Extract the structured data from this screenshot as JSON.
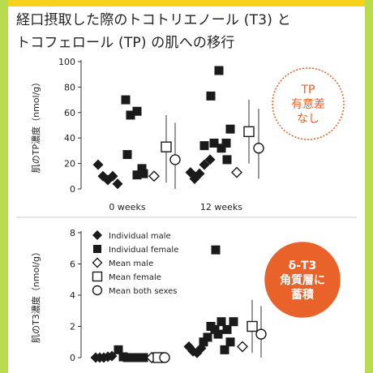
{
  "page": {
    "title_line1": "経口摂取した際のトコトリエノール (T3) と",
    "title_line2": "トコフェロール (TP) の肌への移行",
    "accent_color": "#e8622a",
    "background_color": "#b9db4e",
    "top_bar_color": "#f6d21a"
  },
  "chart_data": [
    {
      "type": "scatter",
      "title": "",
      "xlabel": "",
      "ylabel": "肌のTP濃度（nmol/g）",
      "categories": [
        "0 weeks",
        "12 weeks"
      ],
      "ylim": [
        0,
        100
      ],
      "yticks": [
        0,
        20,
        40,
        60,
        80,
        100
      ],
      "annotation": "TP\n有意差\nなし",
      "series": [
        {
          "name": "Individual male",
          "marker": "filled-diamond",
          "points": [
            {
              "x": "0 weeks",
              "offset": -0.36,
              "y": 19
            },
            {
              "x": "0 weeks",
              "offset": -0.3,
              "y": 10
            },
            {
              "x": "0 weeks",
              "offset": -0.24,
              "y": 7
            },
            {
              "x": "0 weeks",
              "offset": -0.18,
              "y": 10
            },
            {
              "x": "0 weeks",
              "offset": -0.12,
              "y": 4
            },
            {
              "x": "12 weeks",
              "offset": -0.38,
              "y": 13
            },
            {
              "x": "12 weeks",
              "offset": -0.33,
              "y": 8
            },
            {
              "x": "12 weeks",
              "offset": -0.27,
              "y": 12
            },
            {
              "x": "12 weeks",
              "offset": -0.21,
              "y": 19
            },
            {
              "x": "12 weeks",
              "offset": -0.14,
              "y": 23
            }
          ]
        },
        {
          "name": "Individual female",
          "marker": "filled-square",
          "points": [
            {
              "x": "0 weeks",
              "offset": -0.02,
              "y": 70
            },
            {
              "x": "0 weeks",
              "offset": 0.04,
              "y": 58
            },
            {
              "x": "0 weeks",
              "offset": 0.12,
              "y": 61
            },
            {
              "x": "0 weeks",
              "offset": 0.0,
              "y": 27
            },
            {
              "x": "0 weeks",
              "offset": 0.12,
              "y": 11
            },
            {
              "x": "0 weeks",
              "offset": 0.18,
              "y": 16
            },
            {
              "x": "0 weeks",
              "offset": 0.2,
              "y": 12
            },
            {
              "x": "12 weeks",
              "offset": -0.21,
              "y": 34
            },
            {
              "x": "12 weeks",
              "offset": -0.13,
              "y": 73
            },
            {
              "x": "12 weeks",
              "offset": -0.09,
              "y": 36
            },
            {
              "x": "12 weeks",
              "offset": -0.03,
              "y": 93
            },
            {
              "x": "12 weeks",
              "offset": 0.0,
              "y": 32
            },
            {
              "x": "12 weeks",
              "offset": 0.06,
              "y": 36
            },
            {
              "x": "12 weeks",
              "offset": 0.11,
              "y": 47
            },
            {
              "x": "12 weeks",
              "offset": 0.07,
              "y": 23
            }
          ]
        },
        {
          "name": "Mean male",
          "marker": "open-diamond",
          "points": [
            {
              "x": "0 weeks",
              "offset": 0.33,
              "y": 10
            },
            {
              "x": "12 weeks",
              "offset": 0.19,
              "y": 13
            }
          ]
        },
        {
          "name": "Mean female",
          "marker": "open-square",
          "points": [
            {
              "x": "0 weeks",
              "offset": 0.48,
              "y": 33,
              "err_low": 5,
              "err_high": 58
            },
            {
              "x": "12 weeks",
              "offset": 0.34,
              "y": 45,
              "err_low": 20,
              "err_high": 70
            }
          ]
        },
        {
          "name": "Mean both sexes",
          "marker": "open-circle",
          "points": [
            {
              "x": "0 weeks",
              "offset": 0.59,
              "y": 23,
              "err_low": 0,
              "err_high": 52
            },
            {
              "x": "12 weeks",
              "offset": 0.46,
              "y": 32,
              "err_low": 8,
              "err_high": 63
            }
          ]
        }
      ]
    },
    {
      "type": "scatter",
      "title": "",
      "xlabel": "",
      "ylabel": "肌のT3濃度（nmol/g）",
      "ylim": [
        0,
        8
      ],
      "yticks": [
        0,
        2,
        4,
        6,
        8
      ],
      "annotation": "δ-T3\n角質層に\n蓄積",
      "legend": {
        "placement": "top-left",
        "entries": [
          {
            "marker": "filled-diamond",
            "label": "Individual male"
          },
          {
            "marker": "filled-square",
            "label": "Individual female"
          },
          {
            "marker": "open-diamond",
            "label": "Mean male"
          },
          {
            "marker": "open-square",
            "label": "Mean female"
          },
          {
            "marker": "open-circle",
            "label": "Mean both sexes"
          }
        ]
      },
      "series": [
        {
          "name": "Individual male",
          "marker": "filled-diamond",
          "points": [
            {
              "x": "0 weeks",
              "offset": -0.44,
              "y": 0
            },
            {
              "x": "0 weeks",
              "offset": -0.39,
              "y": 0
            },
            {
              "x": "0 weeks",
              "offset": -0.34,
              "y": 0
            },
            {
              "x": "0 weeks",
              "offset": -0.29,
              "y": 0.05
            },
            {
              "x": "0 weeks",
              "offset": -0.24,
              "y": 0.1
            },
            {
              "x": "12 weeks",
              "offset": -0.39,
              "y": 0.7
            },
            {
              "x": "12 weeks",
              "offset": -0.34,
              "y": 0.4
            },
            {
              "x": "12 weeks",
              "offset": -0.29,
              "y": 0.3
            },
            {
              "x": "12 weeks",
              "offset": -0.24,
              "y": 0.6
            }
          ]
        },
        {
          "name": "Individual female",
          "marker": "filled-square",
          "points": [
            {
              "x": "0 weeks",
              "offset": -0.16,
              "y": 0.5
            },
            {
              "x": "0 weeks",
              "offset": -0.1,
              "y": 0.05
            },
            {
              "x": "0 weeks",
              "offset": -0.05,
              "y": 0
            },
            {
              "x": "0 weeks",
              "offset": 0.0,
              "y": 0
            },
            {
              "x": "0 weeks",
              "offset": 0.05,
              "y": 0
            },
            {
              "x": "0 weeks",
              "offset": 0.1,
              "y": 0
            },
            {
              "x": "0 weeks",
              "offset": 0.15,
              "y": 0
            },
            {
              "x": "12 weeks",
              "offset": -0.21,
              "y": 1.0
            },
            {
              "x": "12 weeks",
              "offset": -0.16,
              "y": 1.3
            },
            {
              "x": "12 weeks",
              "offset": -0.12,
              "y": 2.0
            },
            {
              "x": "12 weeks",
              "offset": -0.07,
              "y": 1.8
            },
            {
              "x": "12 weeks",
              "offset": -0.03,
              "y": 1.5
            },
            {
              "x": "12 weeks",
              "offset": 0.01,
              "y": 2.3
            },
            {
              "x": "12 weeks",
              "offset": 0.05,
              "y": 0.5
            },
            {
              "x": "12 weeks",
              "offset": 0.08,
              "y": 1.8
            },
            {
              "x": "12 weeks",
              "offset": 0.12,
              "y": 1.0
            },
            {
              "x": "12 weeks",
              "offset": 0.16,
              "y": 2.3
            },
            {
              "x": "12 weeks",
              "offset": -0.06,
              "y": 6.9
            }
          ]
        },
        {
          "name": "Mean male",
          "marker": "open-diamond",
          "points": [
            {
              "x": "0 weeks",
              "offset": 0.25,
              "y": 0
            },
            {
              "x": "12 weeks",
              "offset": 0.27,
              "y": 0.7
            }
          ]
        },
        {
          "name": "Mean female",
          "marker": "open-square",
          "points": [
            {
              "x": "0 weeks",
              "offset": 0.33,
              "y": 0
            },
            {
              "x": "12 weeks",
              "offset": 0.39,
              "y": 2.0,
              "err_low": 0.3,
              "err_high": 3.7
            }
          ]
        },
        {
          "name": "Mean both sexes",
          "marker": "open-circle",
          "points": [
            {
              "x": "0 weeks",
              "offset": 0.41,
              "y": 0
            },
            {
              "x": "12 weeks",
              "offset": 0.5,
              "y": 1.5,
              "err_low": 0,
              "err_high": 3.3
            }
          ]
        }
      ]
    }
  ]
}
